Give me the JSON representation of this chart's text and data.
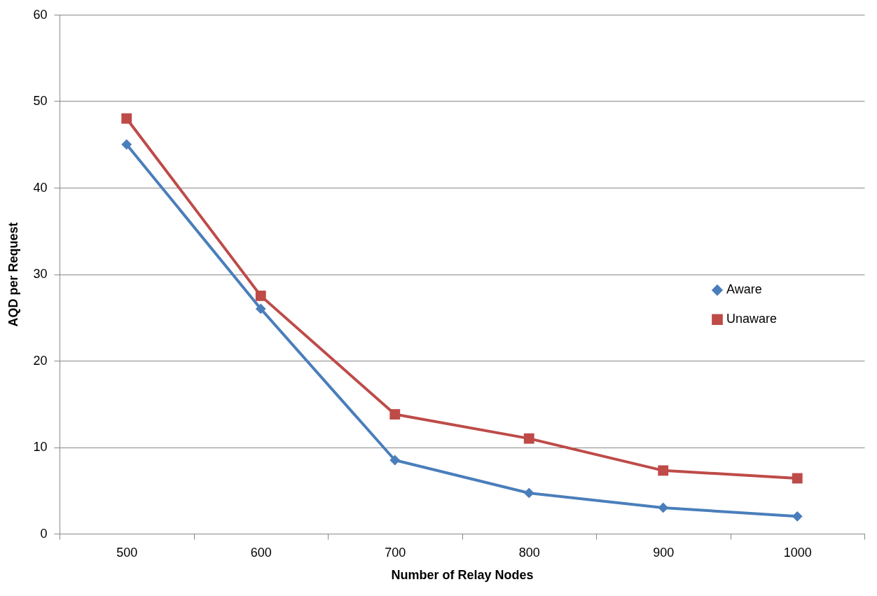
{
  "chart_data": {
    "type": "line",
    "xlabel": "Number of Relay Nodes",
    "ylabel": "AQD per Request",
    "categories": [
      "500",
      "600",
      "700",
      "800",
      "900",
      "1000"
    ],
    "series": [
      {
        "name": "Aware",
        "color": "#4a7ebb",
        "marker": "diamond",
        "values": [
          45,
          26,
          8.5,
          4.7,
          3.0,
          2.0
        ]
      },
      {
        "name": "Unaware",
        "color": "#be4b48",
        "marker": "square",
        "values": [
          48,
          27.5,
          13.8,
          11.0,
          7.3,
          6.4
        ]
      }
    ],
    "ylim": [
      0,
      60
    ],
    "yticks": [
      0,
      10,
      20,
      30,
      40,
      50,
      60
    ],
    "grid": "y",
    "legend": "right",
    "line_style": "solid"
  }
}
